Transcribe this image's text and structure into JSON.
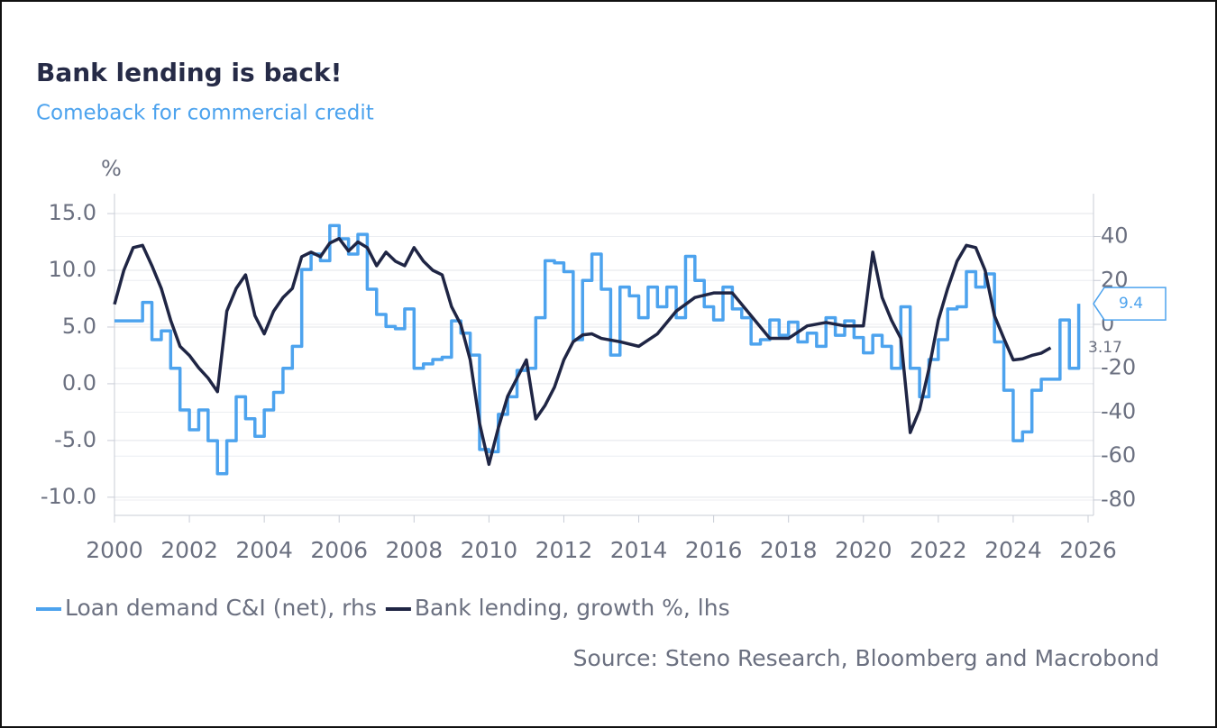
{
  "chart_data": {
    "type": "line",
    "title": "Bank lending is back!",
    "subtitle": "Comeback for commercial credit",
    "y_unit": "%",
    "source": "Source: Steno Research, Bloomberg and Macrobond",
    "xlim": [
      2000,
      2026
    ],
    "xticks": [
      2000,
      2002,
      2004,
      2006,
      2008,
      2010,
      2012,
      2014,
      2016,
      2018,
      2020,
      2022,
      2024,
      2026
    ],
    "ylim": [
      -11.6,
      16.75
    ],
    "yticks": [
      {
        "value": 15,
        "label": "15.0"
      },
      {
        "value": 10,
        "label": "10.0"
      },
      {
        "value": 5,
        "label": "5.0"
      },
      {
        "value": 0,
        "label": "0.0"
      },
      {
        "value": -5,
        "label": "-5.0"
      },
      {
        "value": -10,
        "label": "-10.0"
      }
    ],
    "y2lim": [
      -87,
      59.5
    ],
    "y2ticks": [
      40,
      20,
      0,
      -20,
      -40,
      -60,
      -80
    ],
    "grid": true,
    "legend": "bottom",
    "series": [
      {
        "name": "Loan demand C&I (net), rhs",
        "color": "#4da3ee",
        "axis": "y2",
        "step": true,
        "x": [
          2000.0,
          2000.75,
          2001.0,
          2001.25,
          2001.5,
          2001.75,
          2002.0,
          2002.25,
          2002.5,
          2002.75,
          2003.0,
          2003.25,
          2003.5,
          2003.75,
          2004.0,
          2004.25,
          2004.5,
          2004.75,
          2005.0,
          2005.25,
          2005.5,
          2005.75,
          2006.0,
          2006.25,
          2006.5,
          2006.75,
          2007.0,
          2007.25,
          2007.5,
          2007.75,
          2008.0,
          2008.25,
          2008.5,
          2008.75,
          2009.0,
          2009.25,
          2009.5,
          2009.75,
          2010.0,
          2010.25,
          2010.5,
          2010.75,
          2011.0,
          2011.25,
          2011.5,
          2011.75,
          2012.0,
          2012.25,
          2012.5,
          2012.75,
          2013.0,
          2013.25,
          2013.5,
          2013.75,
          2014.0,
          2014.25,
          2014.5,
          2014.75,
          2015.0,
          2015.25,
          2015.5,
          2015.75,
          2016.0,
          2016.25,
          2016.5,
          2016.75,
          2017.0,
          2017.25,
          2017.5,
          2017.75,
          2018.0,
          2018.25,
          2018.5,
          2018.75,
          2019.0,
          2019.25,
          2019.5,
          2019.75,
          2020.0,
          2020.25,
          2020.5,
          2020.75,
          2021.0,
          2021.25,
          2021.5,
          2021.75,
          2022.0,
          2022.25,
          2022.5,
          2022.75,
          2023.0,
          2023.25,
          2023.5,
          2023.75,
          2024.0,
          2024.25,
          2024.5,
          2024.75,
          2025.0,
          2025.25,
          2025.5,
          2025.75
        ],
        "values": [
          1.6,
          10,
          -7,
          -3,
          -20,
          -39,
          -48,
          -39,
          -53,
          -68,
          -53,
          -33,
          -43,
          -51,
          -39,
          -31,
          -20,
          -10,
          25,
          32,
          29,
          45,
          39,
          32,
          41,
          16,
          4.5,
          -1,
          -2,
          7,
          -20,
          -18,
          -16,
          -15,
          1.6,
          -4,
          -14,
          -57,
          -58,
          -41,
          -33,
          -21,
          -20,
          3,
          29,
          28,
          24,
          -7,
          20,
          32,
          16,
          -14,
          17,
          13,
          3,
          17,
          8,
          17,
          3,
          31,
          20,
          8,
          2,
          17,
          7,
          3,
          -9,
          -7,
          2,
          -5,
          1,
          -8,
          -4,
          -10,
          3,
          -5,
          1.6,
          -6,
          -13,
          -5,
          -10,
          -20,
          8,
          -20,
          -33,
          -16,
          -7,
          7,
          8,
          24,
          17,
          23,
          -8,
          -30,
          -53,
          -49,
          -30,
          -25,
          -25,
          2,
          -20,
          9.4
        ],
        "end_label": "9.4"
      },
      {
        "name": "Bank lending, growth %, lhs",
        "color": "#1f2544",
        "axis": "y",
        "x": [
          2000.0,
          2000.25,
          2000.5,
          2000.75,
          2001.0,
          2001.25,
          2001.5,
          2001.75,
          2002.0,
          2002.25,
          2002.5,
          2002.75,
          2003.0,
          2003.25,
          2003.5,
          2003.75,
          2004.0,
          2004.25,
          2004.5,
          2004.75,
          2005.0,
          2005.25,
          2005.5,
          2005.75,
          2006.0,
          2006.25,
          2006.5,
          2006.75,
          2007.0,
          2007.25,
          2007.5,
          2007.75,
          2008.0,
          2008.25,
          2008.5,
          2008.75,
          2009.0,
          2009.25,
          2009.5,
          2009.75,
          2010.0,
          2010.25,
          2010.5,
          2010.75,
          2011.0,
          2011.25,
          2011.5,
          2011.75,
          2012.0,
          2012.25,
          2012.5,
          2012.75,
          2013.0,
          2013.5,
          2014.0,
          2014.5,
          2015.0,
          2015.5,
          2016.0,
          2016.5,
          2017.0,
          2017.5,
          2018.0,
          2018.5,
          2019.0,
          2019.5,
          2020.0,
          2020.25,
          2020.5,
          2020.75,
          2021.0,
          2021.25,
          2021.5,
          2021.75,
          2022.0,
          2022.25,
          2022.5,
          2022.75,
          2023.0,
          2023.25,
          2023.5,
          2023.75,
          2024.0,
          2024.25,
          2024.5,
          2024.75,
          2025.0
        ],
        "values": [
          7.0,
          10,
          12,
          12.2,
          10.4,
          8.4,
          5.6,
          3.3,
          2.5,
          1.4,
          0.5,
          -0.7,
          6.4,
          8.4,
          9.6,
          6,
          4.4,
          6.4,
          7.6,
          8.4,
          11.2,
          11.6,
          11.2,
          12.4,
          12.8,
          11.7,
          12.5,
          12,
          10.4,
          11.6,
          10.8,
          10.4,
          12,
          10.8,
          10,
          9.6,
          6.8,
          5.2,
          2.1,
          -3.5,
          -7.1,
          -3.9,
          -1.1,
          0.5,
          2.1,
          -3.1,
          -1.9,
          -0.3,
          2.1,
          3.7,
          4.3,
          4.4,
          4,
          3.7,
          3.3,
          4.4,
          6.4,
          7.6,
          8,
          8,
          6,
          4,
          4,
          5.1,
          5.4,
          5.1,
          5.1,
          11.6,
          7.6,
          5.6,
          4,
          -4.3,
          -2.3,
          1.3,
          5.6,
          8.4,
          10.8,
          12.2,
          12,
          10,
          6,
          4,
          2.1,
          2.2,
          2.5,
          2.7,
          3.17
        ],
        "end_label": "3.17"
      }
    ]
  }
}
